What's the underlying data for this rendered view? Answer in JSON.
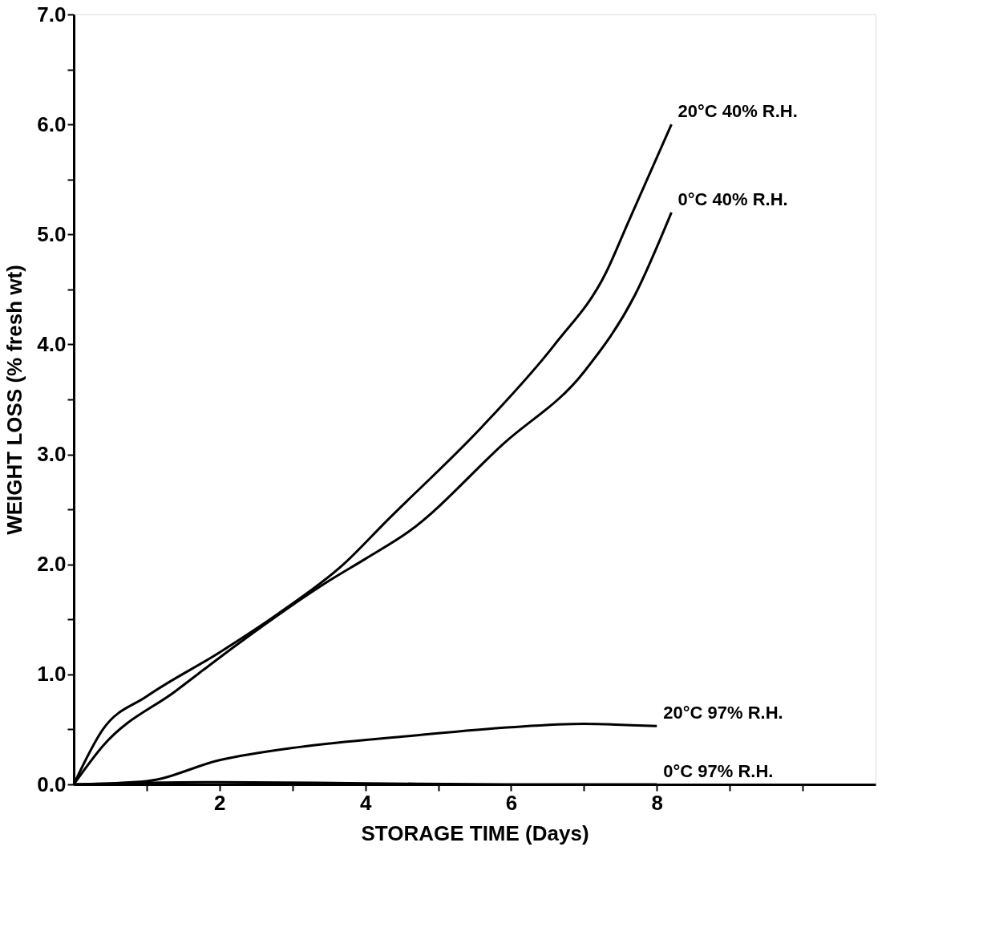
{
  "chart_data": {
    "type": "line",
    "xlabel": "STORAGE TIME (Days)",
    "ylabel": "WEIGHT LOSS (% fresh wt)",
    "xlim": [
      0,
      11
    ],
    "ylim": [
      0,
      7
    ],
    "xticks": [
      {
        "value": 1,
        "label": null
      },
      2,
      {
        "value": 3,
        "label": null
      },
      4,
      {
        "value": 5,
        "label": null
      },
      6,
      {
        "value": 7,
        "label": null
      },
      8,
      {
        "value": 9,
        "label": null
      },
      {
        "value": 10,
        "label": null
      }
    ],
    "yticks": [
      {
        "value": 0,
        "label": "0.0"
      },
      {
        "value": 0.5,
        "label": null
      },
      {
        "value": 1,
        "label": "1.0"
      },
      {
        "value": 1.5,
        "label": null
      },
      {
        "value": 2,
        "label": "2.0"
      },
      {
        "value": 2.5,
        "label": null
      },
      {
        "value": 3,
        "label": "3.0"
      },
      {
        "value": 3.5,
        "label": null
      },
      {
        "value": 4,
        "label": "4.0"
      },
      {
        "value": 4.5,
        "label": null
      },
      {
        "value": 5,
        "label": "5.0"
      },
      {
        "value": 5.5,
        "label": null
      },
      {
        "value": 6,
        "label": "6.0"
      },
      {
        "value": 6.5,
        "label": null
      },
      {
        "value": 7,
        "label": "7.0"
      }
    ],
    "grid": false,
    "legend": false,
    "marker": "none",
    "line_style": "solid",
    "series": [
      {
        "name": "20°C 40% R.H.",
        "color": "#000000",
        "x": [
          0,
          0.4,
          1.0,
          2.0,
          2.8,
          3.7,
          4.3,
          5.6,
          6.6,
          7.3,
          7.6,
          8.2
        ],
        "values": [
          0,
          0.5,
          0.8,
          1.2,
          1.55,
          2.0,
          2.4,
          3.25,
          4.0,
          4.65,
          5.1,
          6.0
        ]
      },
      {
        "name": "0°C 40% R.H.",
        "color": "#000000",
        "x": [
          0,
          0.4,
          1.4,
          2.3,
          3.5,
          4.0,
          4.6,
          5.9,
          7.0,
          7.7,
          8.2
        ],
        "values": [
          0,
          0.35,
          0.85,
          1.3,
          1.85,
          2.05,
          2.3,
          3.1,
          3.75,
          4.45,
          5.2
        ]
      },
      {
        "name": "20°C 97% R.H.",
        "color": "#000000",
        "x": [
          0,
          1.0,
          2.0,
          3.1,
          4.6,
          6.0,
          7.0,
          8.0
        ],
        "values": [
          0,
          0.03,
          0.22,
          0.34,
          0.44,
          0.52,
          0.55,
          0.53
        ]
      },
      {
        "name": "0°C 97% R.H.",
        "color": "#000000",
        "x": [
          0,
          2,
          4,
          6,
          8.0
        ],
        "values": [
          0,
          0.02,
          0.01,
          0.0,
          0.0
        ]
      }
    ]
  }
}
